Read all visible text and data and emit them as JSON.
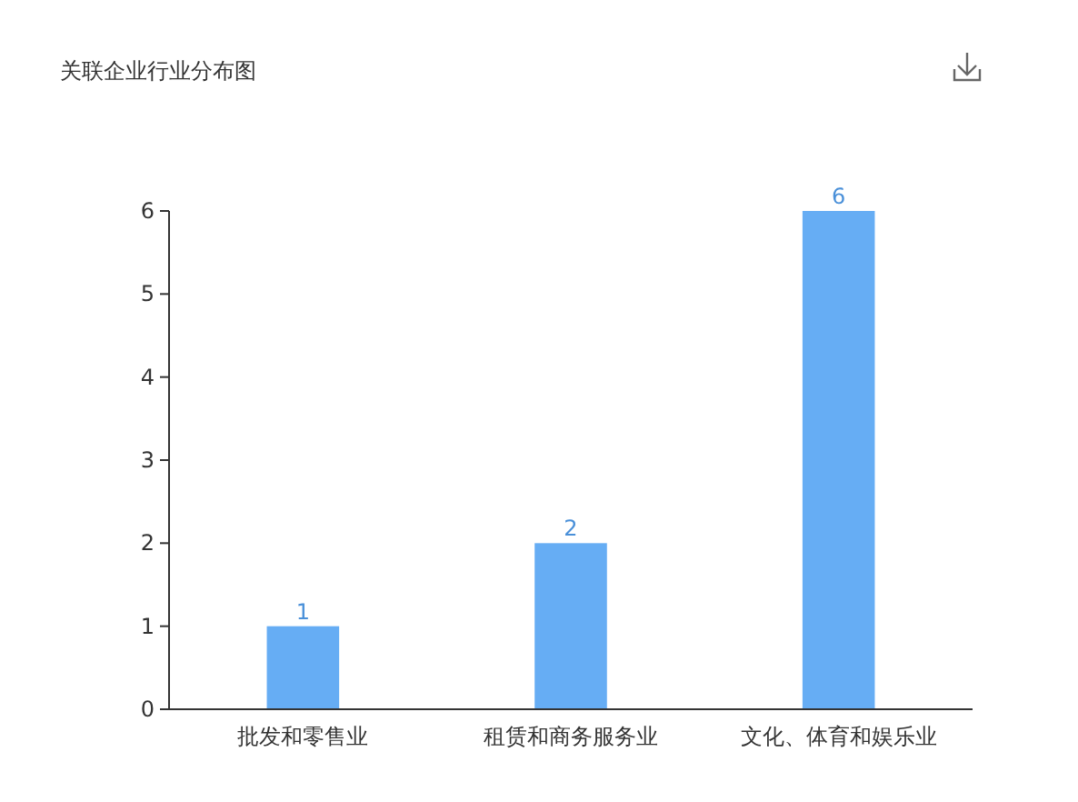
{
  "chart_data": {
    "type": "bar",
    "title": "关联企业行业分布图",
    "categories": [
      "批发和零售业",
      "租赁和商务服务业",
      "文化、体育和娱乐业"
    ],
    "values": [
      1,
      2,
      6
    ],
    "color": "#66adf4",
    "ylim": [
      0,
      6
    ],
    "yticks": [
      0,
      1,
      2,
      3,
      4,
      5,
      6
    ],
    "grid": false,
    "data_labels": true
  }
}
